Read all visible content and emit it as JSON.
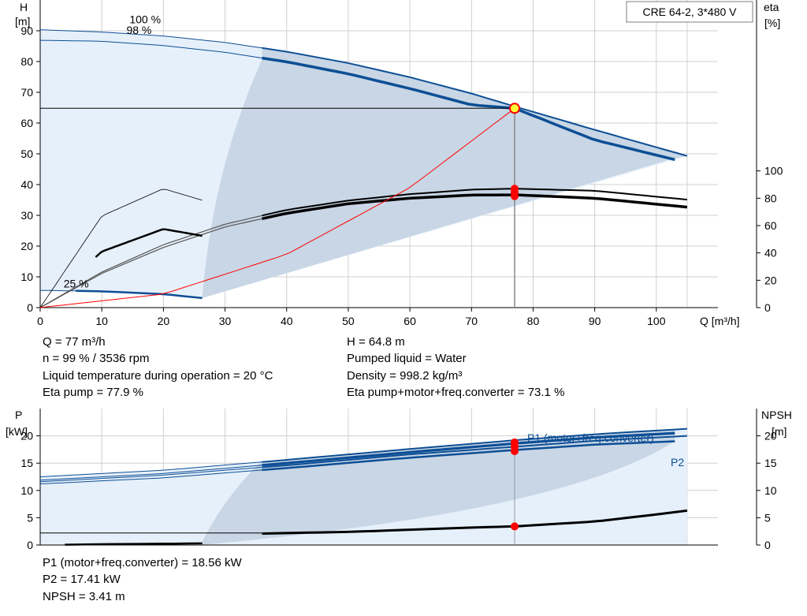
{
  "model_label": "CRE 64-2, 3*480 V",
  "colors": {
    "primary_curve": "#0d4e95",
    "region_fill": "#c8d6e5",
    "region_light": "#e6f0fa",
    "efficiency_curve": "#000000",
    "system_curve": "#ff0000",
    "duty_marker": "#ff0000",
    "duty_marker_highlight": "#ffff33",
    "grid": "#d0d0d0"
  },
  "duty_info": {
    "left": [
      "Q = 77 m³/h",
      "n = 99 % / 3536 rpm",
      "Liquid temperature during operation = 20 °C",
      "Eta pump = 77.9 %"
    ],
    "right": [
      "H = 64.8 m",
      "Pumped liquid = Water",
      "Density = 998.2 kg/m³",
      "Eta pump+motor+freq.converter = 73.1 %"
    ]
  },
  "power_info": [
    "P1 (motor+freq.converter) = 18.56 kW",
    "P2 = 17.41 kW",
    "NPSH = 3.41 m"
  ],
  "chart_data": [
    {
      "type": "line",
      "xlabel": "Q [m³/h]",
      "ylabel": [
        "H",
        "[m]"
      ],
      "y2label": [
        "eta",
        "[%]"
      ],
      "xlim": [
        0,
        110
      ],
      "ylim": [
        0,
        100
      ],
      "xticks": [
        0,
        10,
        20,
        30,
        40,
        50,
        60,
        70,
        80,
        90,
        100
      ],
      "yticks": [
        0,
        10,
        20,
        30,
        40,
        50,
        60,
        70,
        80,
        90
      ],
      "y2lim": [
        0,
        225
      ],
      "y2ticks": [
        0,
        20,
        40,
        60,
        80,
        100
      ],
      "grid": true,
      "curve_labels": [
        {
          "text": "100 %",
          "x": 14.5,
          "y": 92.5
        },
        {
          "text": "98 %",
          "x": 14,
          "y": 89
        },
        {
          "text": "25 %",
          "x": 3.8,
          "y": 6.5
        }
      ],
      "series": [
        {
          "role": "head-100",
          "values": [
            [
              0,
              90.3
            ],
            [
              10,
              89.6
            ],
            [
              20,
              88.3
            ],
            [
              30,
              86.2
            ],
            [
              40,
              83.2
            ],
            [
              50,
              79.5
            ],
            [
              60,
              74.9
            ],
            [
              70,
              69.6
            ],
            [
              77,
              65.4
            ],
            [
              90,
              57.8
            ],
            [
              105,
              49.3
            ]
          ]
        },
        {
          "role": "head-98",
          "values": [
            [
              0,
              86.9
            ],
            [
              10,
              86.6
            ],
            [
              20,
              85.2
            ],
            [
              30,
              83.0
            ],
            [
              40,
              79.9
            ],
            [
              50,
              76.0
            ],
            [
              60,
              71.2
            ],
            [
              70,
              65.9
            ],
            [
              77,
              64.8
            ],
            [
              90,
              54.5
            ],
            [
              103,
              48.1
            ]
          ]
        },
        {
          "role": "head-25",
          "values": [
            [
              0,
              5.6
            ],
            [
              10,
              5.3
            ],
            [
              20,
              4.4
            ],
            [
              26.3,
              3.1
            ]
          ]
        },
        {
          "role": "eta-100",
          "values": [
            [
              0,
              0
            ],
            [
              10,
              26
            ],
            [
              20,
              46
            ],
            [
              30,
              61
            ],
            [
              40,
              71.5
            ],
            [
              50,
              78.3
            ],
            [
              60,
              83
            ],
            [
              70,
              86.3
            ],
            [
              77,
              87
            ],
            [
              90,
              85.5
            ],
            [
              105,
              79
            ]
          ]
        },
        {
          "role": "eta-98",
          "values": [
            [
              0,
              0
            ],
            [
              10,
              25
            ],
            [
              20,
              44
            ],
            [
              30,
              59
            ],
            [
              40,
              69
            ],
            [
              50,
              76
            ],
            [
              60,
              80
            ],
            [
              70,
              82.3
            ],
            [
              77,
              82.5
            ],
            [
              90,
              80
            ],
            [
              105,
              73.5
            ]
          ]
        },
        {
          "role": "eta-25",
          "values": [
            [
              0,
              0
            ],
            [
              10,
              41
            ],
            [
              20,
              57.5
            ],
            [
              26.3,
              52.5
            ]
          ]
        },
        {
          "role": "eta-25-thin",
          "values": [
            [
              0,
              0
            ],
            [
              10,
              67
            ],
            [
              20,
              87
            ],
            [
              26.3,
              78.5
            ]
          ]
        },
        {
          "role": "system",
          "values": [
            [
              0,
              0
            ],
            [
              20,
              4.4
            ],
            [
              40,
              17.3
            ],
            [
              60,
              39
            ],
            [
              77,
              64.8
            ]
          ]
        }
      ],
      "duty_point": {
        "q": 77,
        "h": 64.8,
        "eta_markers": [
          87,
          84.5,
          81.5
        ]
      }
    },
    {
      "type": "line",
      "ylabel": [
        "P",
        "[kW]"
      ],
      "y2label": [
        "NPSH",
        "[m]"
      ],
      "xlim": [
        0,
        110
      ],
      "ylim": [
        0,
        25
      ],
      "yticks": [
        0,
        5,
        10,
        15,
        20
      ],
      "y2ticks": [
        0,
        5,
        10,
        15,
        20
      ],
      "grid": true,
      "series_labels": [
        "P1 (motor+freq.converter)",
        "P2"
      ],
      "series": [
        {
          "name": "P1 (motor+freq.converter)",
          "role": "p1-100",
          "values": [
            [
              0,
              12.5
            ],
            [
              20,
              13.7
            ],
            [
              40,
              15.6
            ],
            [
              60,
              17.6
            ],
            [
              77,
              19.2
            ],
            [
              90,
              20.3
            ],
            [
              105,
              21.3
            ]
          ]
        },
        {
          "name": "P1 (motor+freq.converter)",
          "role": "p1-98",
          "values": [
            [
              0,
              11.9
            ],
            [
              20,
              13.1
            ],
            [
              40,
              15.0
            ],
            [
              60,
              17.0
            ],
            [
              77,
              18.6
            ],
            [
              90,
              19.7
            ],
            [
              103,
              20.5
            ]
          ]
        },
        {
          "name": "P2",
          "role": "p2-98",
          "values": [
            [
              0,
              11.2
            ],
            [
              20,
              12.3
            ],
            [
              40,
              14.1
            ],
            [
              60,
              16.0
            ],
            [
              77,
              17.4
            ],
            [
              90,
              18.4
            ],
            [
              103,
              19.0
            ]
          ]
        },
        {
          "role": "p2-100",
          "values": [
            [
              0,
              11.6
            ],
            [
              20,
              12.8
            ],
            [
              40,
              14.6
            ],
            [
              60,
              16.6
            ],
            [
              77,
              18.0
            ],
            [
              90,
              19.1
            ],
            [
              105,
              20.0
            ]
          ]
        },
        {
          "role": "npsh",
          "values": [
            [
              36,
              2.1
            ],
            [
              50,
              2.4
            ],
            [
              60,
              2.8
            ],
            [
              70,
              3.2
            ],
            [
              77,
              3.41
            ],
            [
              90,
              4.3
            ],
            [
              100,
              5.6
            ],
            [
              105,
              6.3
            ]
          ]
        },
        {
          "role": "p-25",
          "values": [
            [
              0,
              0
            ],
            [
              10,
              0.15
            ],
            [
              20,
              0.25
            ],
            [
              26.3,
              0.3
            ]
          ]
        }
      ],
      "duty_point": {
        "q": 77,
        "markers": [
          18.8,
          18.0,
          17.2
        ],
        "npsh": 3.41
      }
    }
  ]
}
